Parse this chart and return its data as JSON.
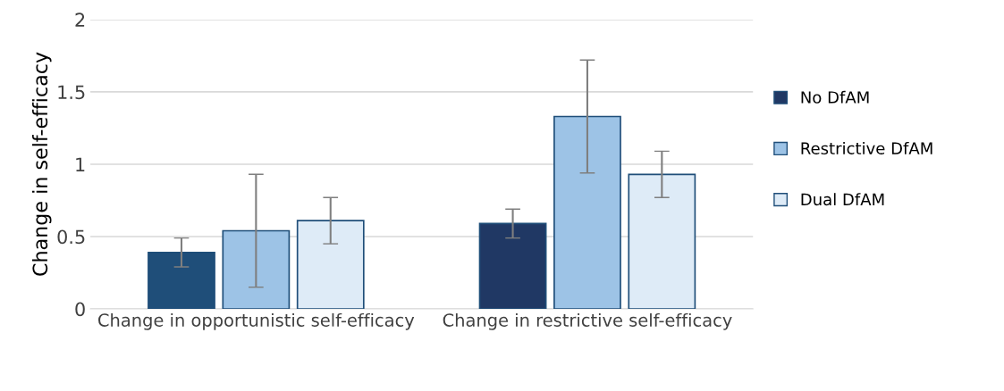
{
  "chart_data": {
    "type": "bar",
    "ylabel": "Change in self-efficacy",
    "categories": [
      "Change in opportunistic self-efficacy",
      "Change in restrictive self-efficacy"
    ],
    "series": [
      {
        "name": "No DfAM",
        "color": "#203864",
        "colors": [
          "#1f4e79",
          "#203864"
        ],
        "values": [
          0.39,
          0.59
        ],
        "errors": [
          0.1,
          0.1
        ]
      },
      {
        "name": "Restrictive DfAM",
        "color": "#9dc3e6",
        "values": [
          0.54,
          1.33
        ],
        "errors": [
          0.39,
          0.39
        ]
      },
      {
        "name": "Dual DfAM",
        "color": "#deebf7",
        "values": [
          0.61,
          0.93
        ],
        "errors": [
          0.16,
          0.16
        ]
      }
    ],
    "ylim": [
      0,
      2
    ],
    "yticks": [
      0,
      0.5,
      1,
      1.5,
      2
    ],
    "grid": "y",
    "legend": "right"
  }
}
